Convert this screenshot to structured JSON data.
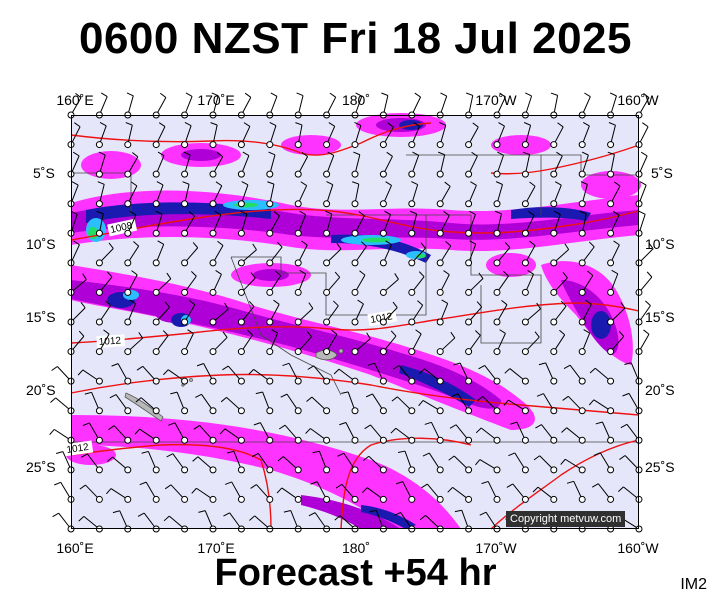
{
  "header": {
    "title": "0600 NZST Fri 18 Jul 2025"
  },
  "footer": {
    "forecast": "Forecast +54 hr",
    "code": "IM2"
  },
  "map": {
    "copyright": "Copyright metvuw.com",
    "top_lon_labels": [
      "160˚E",
      "170˚E",
      "180˚",
      "170˚W",
      "160˚W"
    ],
    "bottom_lon_labels": [
      "160˚E",
      "170˚E",
      "180˚",
      "170˚W",
      "160˚W"
    ],
    "left_lat_labels": [
      "5˚S",
      "10˚S",
      "15˚S",
      "20˚S",
      "25˚S"
    ],
    "right_lat_labels": [
      "5˚S",
      "10˚S",
      "15˚S",
      "20˚S",
      "25˚S"
    ],
    "isobar_labels": [
      "1008",
      "1012",
      "1012",
      "1012"
    ],
    "colors": {
      "ocean": "#e6e6fa",
      "rain_light": "#ff33ff",
      "rain_moderate": "#b000d8",
      "rain_heavy": "#1a1ab0",
      "rain_very_heavy": "#2bbfff",
      "rain_extreme": "#22dd66",
      "isobar": "#ee1111",
      "land": "#b8b8b8"
    }
  }
}
